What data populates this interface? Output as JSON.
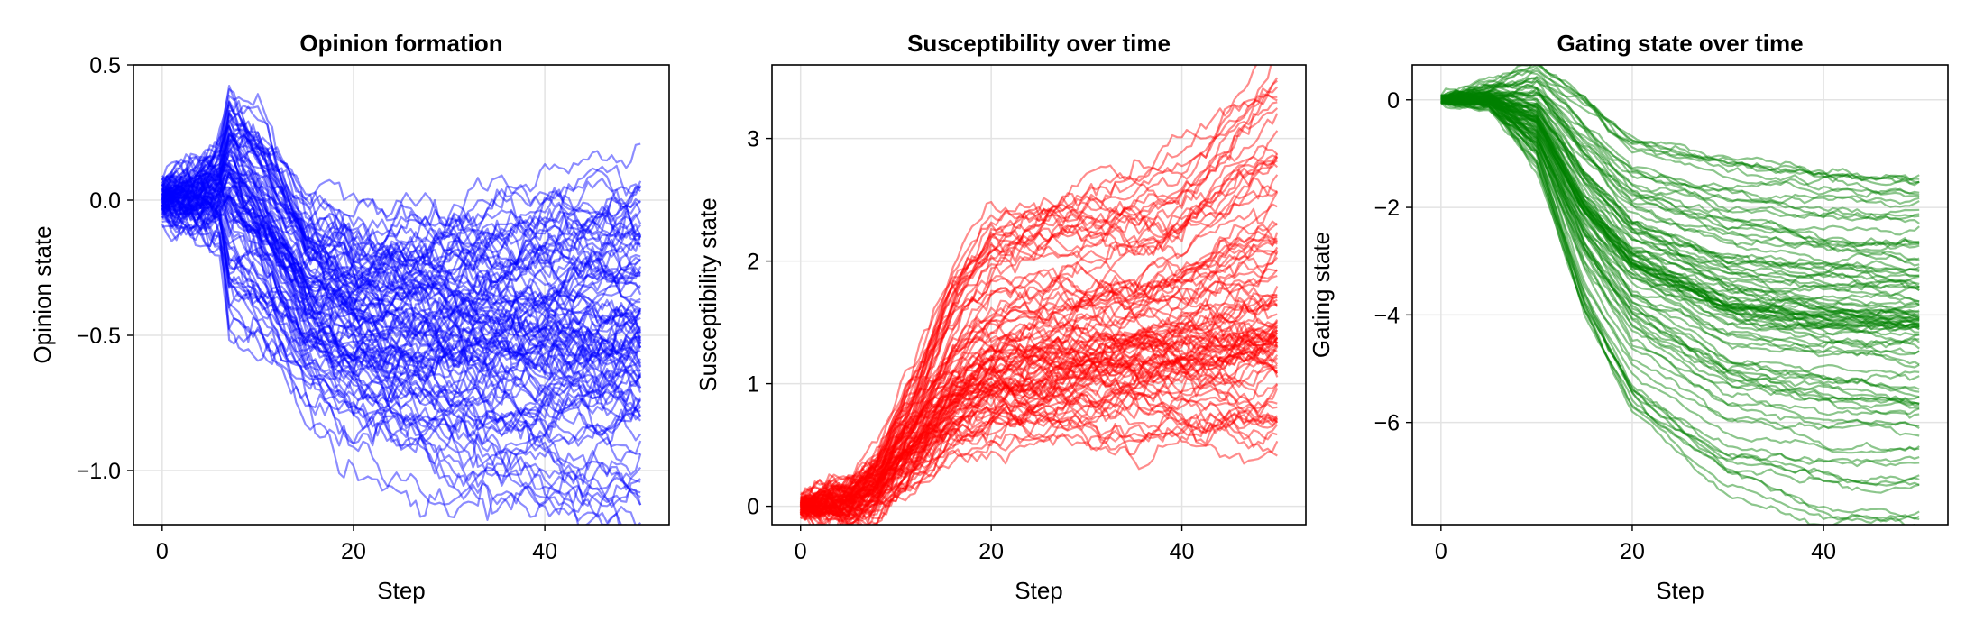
{
  "chart_data": [
    {
      "type": "line",
      "title": "Opinion formation",
      "xlabel": "Step",
      "ylabel": "Opinion state",
      "xlim": [
        -3,
        53
      ],
      "ylim": [
        -1.2,
        0.5
      ],
      "xticks": [
        0,
        20,
        40
      ],
      "yticks": [
        -1.0,
        -0.5,
        0.0,
        0.5
      ],
      "ytick_labels": [
        "−1.0",
        "−0.5",
        "0.0",
        "0.5"
      ],
      "grid": true,
      "legend": "none",
      "series_color": "#0000ff",
      "series_count": 100,
      "series_description_values": {
        "steps": [
          0,
          3,
          6,
          7,
          10,
          15,
          20,
          30,
          40,
          50
        ],
        "mean": [
          0.0,
          0.0,
          0.05,
          0.1,
          -0.05,
          -0.35,
          -0.45,
          -0.5,
          -0.5,
          -0.5
        ],
        "low_envelope": [
          -0.05,
          -0.08,
          -0.15,
          -0.5,
          -0.55,
          -0.75,
          -0.9,
          -1.05,
          -1.15,
          -1.2
        ],
        "high_envelope": [
          0.08,
          0.1,
          0.2,
          0.43,
          0.38,
          0.05,
          -0.05,
          0.0,
          0.1,
          0.2
        ]
      }
    },
    {
      "type": "line",
      "title": "Susceptibility over time",
      "xlabel": "Step",
      "ylabel": "Susceptibility state",
      "xlim": [
        -3,
        53
      ],
      "ylim": [
        -0.15,
        3.6
      ],
      "xticks": [
        0,
        20,
        40
      ],
      "yticks": [
        0,
        1,
        2,
        3
      ],
      "ytick_labels": [
        "0",
        "1",
        "2",
        "3"
      ],
      "grid": true,
      "legend": "none",
      "series_color": "#ff0000",
      "series_count": 100,
      "series_description_values": {
        "steps": [
          0,
          5,
          8,
          12,
          16,
          20,
          30,
          40,
          50
        ],
        "mean": [
          0.0,
          0.02,
          0.15,
          0.55,
          0.9,
          1.1,
          1.25,
          1.35,
          1.45
        ],
        "low_envelope": [
          0.0,
          0.0,
          0.05,
          0.2,
          0.4,
          0.5,
          0.55,
          0.5,
          0.5
        ],
        "high_envelope": [
          0.0,
          0.03,
          0.3,
          1.0,
          1.9,
          2.4,
          2.6,
          2.8,
          3.6
        ]
      }
    },
    {
      "type": "line",
      "title": "Gating state over time",
      "xlabel": "Step",
      "ylabel": "Gating state",
      "xlim": [
        -3,
        53
      ],
      "ylim": [
        -7.9,
        0.65
      ],
      "xticks": [
        0,
        20,
        40
      ],
      "yticks": [
        -6,
        -4,
        -2,
        0
      ],
      "ytick_labels": [
        "−6",
        "−4",
        "−2",
        "0"
      ],
      "grid": true,
      "legend": "none",
      "series_color": "#008000",
      "series_count": 100,
      "series_description_values": {
        "steps": [
          0,
          5,
          10,
          15,
          20,
          30,
          40,
          50
        ],
        "mean": [
          0.0,
          0.05,
          -0.4,
          -2.0,
          -3.0,
          -3.8,
          -4.0,
          -4.1
        ],
        "low_envelope": [
          0.0,
          -0.1,
          -1.2,
          -4.0,
          -5.8,
          -7.2,
          -7.7,
          -7.8
        ],
        "high_envelope": [
          0.0,
          0.2,
          0.6,
          0.0,
          -0.8,
          -1.2,
          -1.4,
          -1.5
        ]
      }
    }
  ]
}
